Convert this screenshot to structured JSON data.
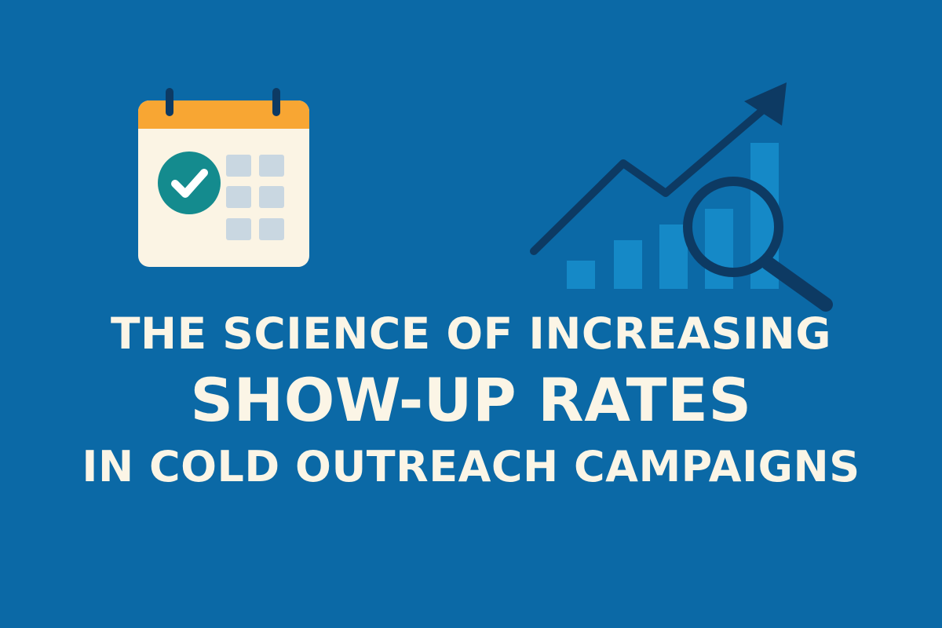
{
  "headline": {
    "line1": "THE SCIENCE OF INCREASING",
    "line2": "SHOW-UP RATES",
    "line3": "IN COLD OUTREACH CAMPAIGNS"
  },
  "icons": {
    "calendar": "calendar-check-icon",
    "growth": "growth-chart-icon",
    "magnifier": "magnifying-glass-icon"
  },
  "colors": {
    "background": "#0b69a6",
    "calendar_header": "#f8a633",
    "calendar_body": "#fbf4e4",
    "check_circle": "#148b8e",
    "chart_line": "#0d3a63",
    "chart_bars": "#1589c7",
    "text": "#fbf5e6"
  }
}
